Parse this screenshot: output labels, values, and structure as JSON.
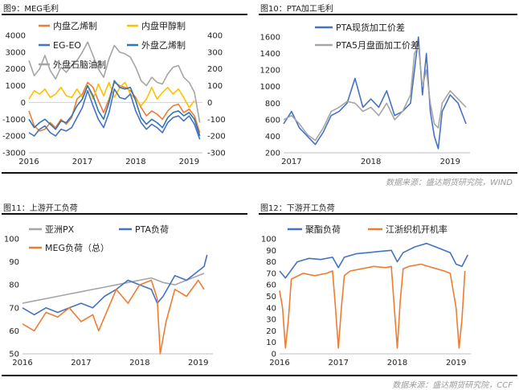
{
  "panels": [
    {
      "title": "图9：MEG毛利",
      "source": ""
    },
    {
      "title": "图10：PTA加工毛利",
      "source": "数据来源：盛达期货研究院，WIND"
    },
    {
      "title": "图11：上游开工负荷",
      "source": ""
    },
    {
      "title": "图12：下游开工负荷",
      "source": "数据来源：盛达期货研究院，CCF"
    }
  ],
  "chart_data": [
    {
      "type": "line",
      "title": "图9：MEG毛利",
      "x_ticks": [
        "2016",
        "2017",
        "2018",
        "2019"
      ],
      "x_range": [
        2016.0,
        2019.25
      ],
      "y_left": {
        "range": [
          -3000,
          4000
        ],
        "ticks": [
          -3000,
          -2000,
          -1000,
          0,
          1000,
          2000,
          3000,
          4000
        ]
      },
      "y_right": {
        "range": [
          -300,
          400
        ],
        "ticks": [
          -300,
          -200,
          -100,
          0,
          100,
          200,
          300,
          400
        ]
      },
      "legend": [
        "内盘乙烯制",
        "内盘甲醇制",
        "EG-EO",
        "外盘乙烯制",
        "外盘石脑油制"
      ],
      "series": [
        {
          "name": "内盘乙烯制",
          "color": "#ed7d31",
          "axis": "left",
          "x": [
            2016.0,
            2016.1,
            2016.2,
            2016.3,
            2016.4,
            2016.5,
            2016.6,
            2016.7,
            2016.8,
            2016.9,
            2017.0,
            2017.1,
            2017.2,
            2017.3,
            2017.4,
            2017.5,
            2017.6,
            2017.7,
            2017.8,
            2017.9,
            2018.0,
            2018.1,
            2018.2,
            2018.3,
            2018.4,
            2018.5,
            2018.6,
            2018.7,
            2018.8,
            2018.9,
            2019.0,
            2019.1,
            2019.2
          ],
          "y": [
            -500,
            -1400,
            -1700,
            -1600,
            -1200,
            -1500,
            -1000,
            -1300,
            -900,
            200,
            500,
            1200,
            900,
            100,
            -600,
            200,
            1200,
            1000,
            900,
            700,
            300,
            -300,
            -800,
            -500,
            -700,
            -1000,
            -500,
            -200,
            -100,
            -600,
            -400,
            -800,
            -1800
          ]
        },
        {
          "name": "内盘甲醇制",
          "color": "#ffc000",
          "axis": "left",
          "x": [
            2016.0,
            2016.1,
            2016.2,
            2016.3,
            2016.4,
            2016.5,
            2016.6,
            2016.7,
            2016.8,
            2016.9,
            2017.0,
            2017.1,
            2017.2,
            2017.3,
            2017.4,
            2017.5,
            2017.6,
            2017.7,
            2017.8,
            2017.9,
            2018.0,
            2018.1,
            2018.2,
            2018.3,
            2018.4,
            2018.5,
            2018.6,
            2018.7,
            2018.8,
            2018.9,
            2019.0,
            2019.1
          ],
          "y": [
            200,
            700,
            500,
            800,
            300,
            500,
            900,
            400,
            300,
            800,
            300,
            1000,
            200,
            1100,
            400,
            1200,
            300,
            900,
            1200,
            500,
            200,
            -200,
            200,
            900,
            200,
            600,
            900,
            500,
            800,
            300,
            -300,
            100
          ]
        },
        {
          "name": "EG-EO",
          "color": "#4472c4",
          "axis": "left",
          "x": [
            2016.0,
            2016.1,
            2016.2,
            2016.3,
            2016.4,
            2016.5,
            2016.6,
            2016.7,
            2016.8,
            2016.9,
            2017.0,
            2017.1,
            2017.2,
            2017.3,
            2017.4,
            2017.5,
            2017.6,
            2017.7,
            2017.8,
            2017.9,
            2018.0,
            2018.1,
            2018.2,
            2018.3,
            2018.4,
            2018.5,
            2018.6,
            2018.7,
            2018.8,
            2018.9,
            2019.0,
            2019.1,
            2019.2
          ],
          "y": [
            -1800,
            -2000,
            -1600,
            -1400,
            -1800,
            -2000,
            -1600,
            -1700,
            -1500,
            -900,
            -300,
            700,
            -200,
            -1000,
            -1500,
            -600,
            800,
            300,
            200,
            500,
            -500,
            -1200,
            -1600,
            -1300,
            -1500,
            -1800,
            -1200,
            -900,
            -800,
            -1100,
            -800,
            -1300,
            -2200
          ]
        },
        {
          "name": "外盘乙烯制",
          "color": "#2e75b6",
          "axis": "right",
          "x": [
            2016.0,
            2016.1,
            2016.2,
            2016.3,
            2016.4,
            2016.5,
            2016.6,
            2016.7,
            2016.8,
            2016.9,
            2017.0,
            2017.1,
            2017.2,
            2017.3,
            2017.4,
            2017.5,
            2017.6,
            2017.7,
            2017.8,
            2017.9,
            2018.0,
            2018.1,
            2018.2,
            2018.3,
            2018.4,
            2018.5,
            2018.6,
            2018.7,
            2018.8,
            2018.9,
            2019.0,
            2019.1,
            2019.2
          ],
          "y": [
            -100,
            -150,
            -120,
            -100,
            -130,
            -160,
            -110,
            -120,
            -80,
            -20,
            20,
            100,
            40,
            -50,
            -100,
            0,
            130,
            90,
            80,
            90,
            10,
            -90,
            -130,
            -100,
            -120,
            -150,
            -90,
            -60,
            -50,
            -80,
            -60,
            -100,
            -200
          ]
        },
        {
          "name": "外盘石脑油制",
          "color": "#a5a5a5",
          "axis": "right",
          "x": [
            2016.0,
            2016.1,
            2016.2,
            2016.3,
            2016.4,
            2016.5,
            2016.6,
            2016.7,
            2016.8,
            2016.9,
            2017.0,
            2017.1,
            2017.2,
            2017.3,
            2017.4,
            2017.5,
            2017.6,
            2017.7,
            2017.8,
            2017.9,
            2018.0,
            2018.1,
            2018.2,
            2018.3,
            2018.4,
            2018.5,
            2018.6,
            2018.7,
            2018.8,
            2018.9,
            2019.0,
            2019.1,
            2019.2
          ],
          "y": [
            250,
            160,
            200,
            280,
            190,
            140,
            210,
            180,
            220,
            250,
            300,
            360,
            280,
            200,
            150,
            260,
            340,
            300,
            290,
            270,
            210,
            130,
            100,
            150,
            120,
            110,
            170,
            210,
            220,
            150,
            120,
            60,
            -120
          ]
        }
      ]
    },
    {
      "type": "line",
      "title": "图10：PTA加工毛利",
      "x_ticks": [
        "2017",
        "2018",
        "2019"
      ],
      "x_range": [
        2016.9,
        2019.25
      ],
      "y_left": {
        "range": [
          200,
          1600
        ],
        "ticks": [
          200,
          400,
          600,
          800,
          1000,
          1200,
          1400,
          1600
        ]
      },
      "legend": [
        "PTA现货加工价差",
        "PTA5月盘面加工价差"
      ],
      "series": [
        {
          "name": "PTA现货加工价差",
          "color": "#4472c4",
          "axis": "left",
          "x": [
            2016.9,
            2017.0,
            2017.1,
            2017.2,
            2017.3,
            2017.4,
            2017.5,
            2017.6,
            2017.7,
            2017.8,
            2017.9,
            2018.0,
            2018.1,
            2018.2,
            2018.3,
            2018.4,
            2018.5,
            2018.55,
            2018.6,
            2018.65,
            2018.7,
            2018.75,
            2018.8,
            2018.85,
            2018.9,
            2019.0,
            2019.1,
            2019.2
          ],
          "y": [
            550,
            700,
            500,
            400,
            300,
            450,
            650,
            700,
            800,
            1100,
            750,
            850,
            750,
            950,
            650,
            700,
            800,
            1200,
            1600,
            900,
            1400,
            700,
            400,
            250,
            700,
            900,
            800,
            550
          ]
        },
        {
          "name": "PTA5月盘面加工价差",
          "color": "#a5a5a5",
          "axis": "left",
          "x": [
            2016.9,
            2017.0,
            2017.1,
            2017.2,
            2017.3,
            2017.4,
            2017.5,
            2017.6,
            2017.7,
            2017.8,
            2017.9,
            2018.0,
            2018.1,
            2018.2,
            2018.3,
            2018.4,
            2018.5,
            2018.55,
            2018.6,
            2018.65,
            2018.7,
            2018.75,
            2018.8,
            2018.85,
            2018.9,
            2019.0,
            2019.1,
            2019.2
          ],
          "y": [
            600,
            650,
            550,
            420,
            350,
            500,
            700,
            750,
            820,
            800,
            700,
            750,
            650,
            800,
            600,
            700,
            900,
            1400,
            1500,
            1000,
            1200,
            800,
            550,
            500,
            800,
            950,
            850,
            750
          ]
        }
      ]
    },
    {
      "type": "line",
      "title": "图11：上游开工负荷",
      "x_ticks": [
        "2016",
        "2017",
        "2018",
        "2019"
      ],
      "x_range": [
        2016.0,
        2019.25
      ],
      "y_left": {
        "range": [
          50,
          100
        ],
        "ticks": [
          50,
          60,
          70,
          80,
          90,
          100
        ]
      },
      "legend": [
        "亚洲PX",
        "PTA负荷",
        "MEG负荷（总）"
      ],
      "series": [
        {
          "name": "亚洲PX",
          "color": "#a5a5a5",
          "axis": "left",
          "x": [
            2016.0,
            2016.2,
            2016.4,
            2016.6,
            2016.8,
            2017.0,
            2017.2,
            2017.4,
            2017.6,
            2017.8,
            2018.0,
            2018.2,
            2018.4,
            2018.6,
            2018.8,
            2019.0,
            2019.1
          ],
          "y": [
            72,
            73,
            74,
            75,
            76,
            77,
            78,
            79,
            80,
            81,
            82,
            83,
            81,
            80,
            82,
            84,
            85
          ]
        },
        {
          "name": "PTA负荷",
          "color": "#4472c4",
          "axis": "left",
          "x": [
            2016.0,
            2016.2,
            2016.4,
            2016.6,
            2016.8,
            2017.0,
            2017.2,
            2017.4,
            2017.6,
            2017.8,
            2018.0,
            2018.2,
            2018.3,
            2018.4,
            2018.6,
            2018.8,
            2019.0,
            2019.1,
            2019.15
          ],
          "y": [
            70,
            67,
            70,
            68,
            70,
            72,
            70,
            75,
            78,
            82,
            80,
            78,
            72,
            75,
            84,
            82,
            86,
            88,
            93
          ]
        },
        {
          "name": "MEG负荷（总）",
          "color": "#ed7d31",
          "axis": "left",
          "x": [
            2016.0,
            2016.2,
            2016.4,
            2016.6,
            2016.8,
            2017.0,
            2017.2,
            2017.3,
            2017.4,
            2017.6,
            2017.8,
            2018.0,
            2018.2,
            2018.3,
            2018.35,
            2018.45,
            2018.6,
            2018.8,
            2019.0,
            2019.1
          ],
          "y": [
            63,
            60,
            68,
            66,
            70,
            64,
            67,
            60,
            66,
            78,
            72,
            80,
            82,
            74,
            50,
            64,
            78,
            75,
            82,
            78
          ]
        }
      ]
    },
    {
      "type": "line",
      "title": "图12：下游开工负荷",
      "x_ticks": [
        "2016",
        "2017",
        "2018",
        "2019"
      ],
      "x_range": [
        2016.0,
        2019.25
      ],
      "y_left": {
        "range": [
          0,
          100
        ],
        "ticks": [
          0,
          10,
          20,
          30,
          40,
          50,
          60,
          70,
          80,
          90,
          100
        ]
      },
      "legend": [
        "聚酯负荷",
        "江浙织机开机率"
      ],
      "series": [
        {
          "name": "聚酯负荷",
          "color": "#4472c4",
          "axis": "left",
          "x": [
            2016.0,
            2016.1,
            2016.3,
            2016.5,
            2016.7,
            2016.9,
            2017.0,
            2017.1,
            2017.3,
            2017.5,
            2017.7,
            2017.9,
            2018.0,
            2018.1,
            2018.3,
            2018.5,
            2018.7,
            2018.9,
            2019.0,
            2019.1,
            2019.2
          ],
          "y": [
            72,
            66,
            80,
            83,
            82,
            84,
            75,
            84,
            87,
            88,
            89,
            90,
            80,
            88,
            93,
            96,
            92,
            88,
            78,
            76,
            86
          ]
        },
        {
          "name": "江浙织机开机率",
          "color": "#ed7d31",
          "axis": "left",
          "x": [
            2016.0,
            2016.05,
            2016.1,
            2016.15,
            2016.2,
            2016.4,
            2016.6,
            2016.8,
            2016.9,
            2016.95,
            2017.0,
            2017.05,
            2017.1,
            2017.2,
            2017.4,
            2017.6,
            2017.8,
            2017.9,
            2017.95,
            2018.0,
            2018.05,
            2018.1,
            2018.2,
            2018.4,
            2018.6,
            2018.8,
            2018.9,
            2019.0,
            2019.05,
            2019.1,
            2019.15
          ],
          "y": [
            55,
            40,
            5,
            30,
            65,
            70,
            68,
            70,
            72,
            40,
            5,
            40,
            68,
            72,
            74,
            76,
            75,
            76,
            40,
            5,
            45,
            74,
            76,
            78,
            75,
            72,
            70,
            40,
            5,
            30,
            72
          ]
        }
      ]
    }
  ]
}
